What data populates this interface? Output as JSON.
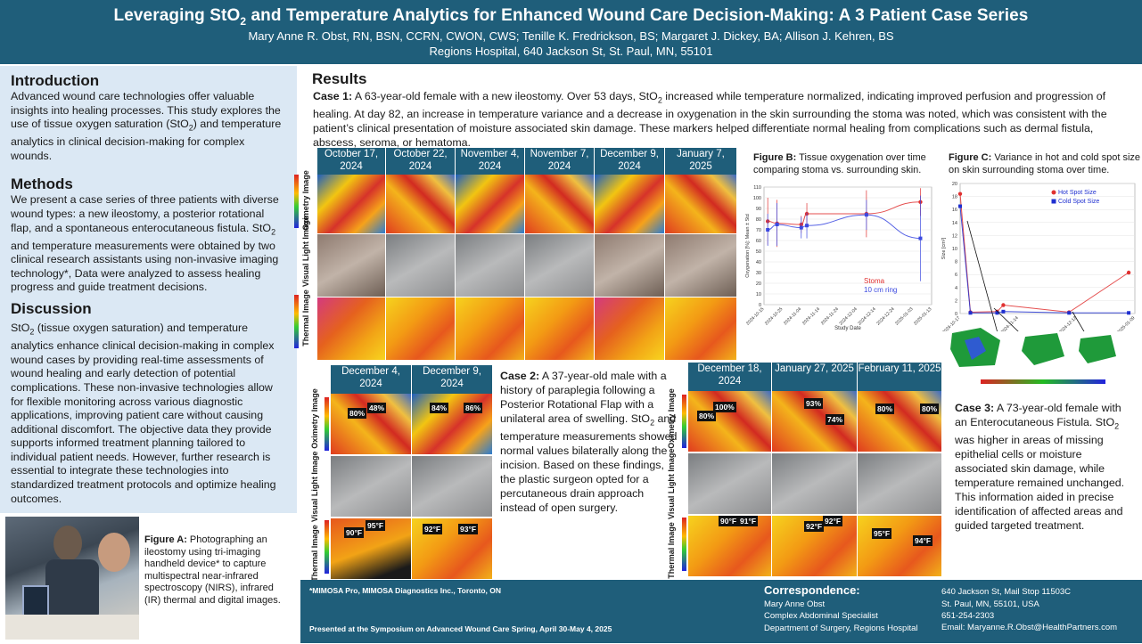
{
  "header": {
    "title_pre": "Leveraging StO",
    "title_sub": "2",
    "title_post": " and Temperature Analytics for Enhanced Wound Care Decision-Making: A 3 Patient Case Series",
    "authors": "Mary Anne R. Obst, RN, BSN, CCRN, CWON, CWS; Tenille K. Fredrickson, BS; Margaret J. Dickey, BA; Allison J. Kehren, BS",
    "affiliation": "Regions Hospital, 640 Jackson St, St. Paul, MN, 55101"
  },
  "intro": {
    "heading": "Introduction",
    "text1": "Advanced wound care technologies offer valuable insights into healing processes. This study explores the use of tissue oxygen saturation (StO",
    "text_sub": "2",
    "text2": ") and temperature analytics in clinical decision-making for complex wounds."
  },
  "methods": {
    "heading": "Methods",
    "text1": "We present a case series of three patients with diverse wound types: a new ileostomy, a posterior rotational flap, and a spontaneous enterocutaneous fistula. StO",
    "text_sub": "2",
    "text2": " and temperature measurements were obtained by two clinical research assistants using non-invasive imaging technology*, Data were analyzed to assess healing progress and guide treatment decisions."
  },
  "discussion": {
    "heading": "Discussion",
    "text1": "StO",
    "text_sub": "2",
    "text2": " (tissue oxygen saturation) and temperature analytics enhance clinical decision-making in complex wound cases by providing real-time assessments of wound healing and early detection of potential complications. These non-invasive technologies allow for flexible monitoring across various diagnostic applications, improving patient care without causing additional discomfort. The objective data they provide supports informed treatment planning tailored to individual patient needs. However, further research is essential to integrate these technologies into standardized treatment protocols and optimize healing outcomes."
  },
  "figure_a": {
    "label": "Figure A:",
    "text": " Photographing an ileostomy using tri-imaging handheld device* to capture multispectral near-infrared spectroscopy (NIRS), infrared (IR) thermal and digital images."
  },
  "results": {
    "heading": "Results",
    "case1_label": "Case 1:",
    "case1_text1": " A 63-year-old female with a new ileostomy. Over 53 days, StO",
    "case1_sub": "2",
    "case1_text2": " increased while temperature normalized, indicating improved perfusion and progression of healing. At day 82, an increase in temperature variance and a decrease in oxygenation in the skin surrounding the stoma was noted, which was consistent with the patient’s clinical presentation of moisture associated skin damage. These markers helped differentiate normal healing from complications such as dermal fistula, abscess, seroma, or hematoma."
  },
  "case1_grid": {
    "dates": [
      "October 17, 2024",
      "October 22, 2024",
      "November 4, 2024",
      "November 7, 2024",
      "December 9, 2024",
      "January 7, 2025"
    ],
    "row_labels": [
      "Oximetry Image",
      "Visual Light Image",
      "Thermal Image"
    ]
  },
  "figure_b": {
    "label": "Figure B:",
    "text": " Tissue oxygenation over time comparing stoma vs. surrounding skin."
  },
  "figure_c": {
    "label": "Figure C:",
    "text": " Variance in hot and cold spot size on skin surrounding stoma over time."
  },
  "chart_data": [
    {
      "type": "line",
      "title": "Tissue oxygenation over time comparing stoma vs. surrounding skin",
      "xlabel": "Study Date",
      "ylabel": "Oxygenation [%]: Mean ± Std",
      "ylim": [
        0,
        110
      ],
      "yticks": [
        0,
        10,
        20,
        30,
        40,
        50,
        60,
        70,
        80,
        90,
        100,
        110
      ],
      "xticks": [
        "2024-10-15",
        "2024-10-25",
        "2024-11-04",
        "2024-11-14",
        "2024-11-24",
        "2024-12-04",
        "2024-12-14",
        "2024-12-24",
        "2025-01-03",
        "2025-01-13"
      ],
      "legend": [
        "Stoma",
        "10 cm ring"
      ],
      "series": [
        {
          "name": "Stoma",
          "color": "#e03030",
          "days": [
            2,
            7,
            20,
            23,
            55,
            84
          ],
          "values": [
            78,
            76,
            75,
            85,
            85,
            96
          ],
          "err": [
            22,
            22,
            8,
            10,
            22,
            13
          ]
        },
        {
          "name": "10 cm ring",
          "color": "#3b49e0",
          "days": [
            2,
            7,
            20,
            23,
            55,
            84
          ],
          "values": [
            70,
            75,
            72,
            74,
            84,
            62
          ],
          "err": [
            15,
            20,
            10,
            12,
            14,
            40
          ]
        }
      ]
    },
    {
      "type": "line",
      "title": "Variance in hot and cold spot size on skin surrounding stoma over time",
      "xlabel": "Study Date",
      "ylabel": "Size [cm²]",
      "ylim": [
        0,
        20
      ],
      "yticks": [
        0,
        2,
        4,
        6,
        8,
        10,
        12,
        14,
        16,
        18,
        20
      ],
      "xticks": [
        "2024-10-17",
        "2024-11-14",
        "2024-12-12",
        "2025-01-09"
      ],
      "legend": [
        "Hot Spot Size",
        "Cold Spot Size"
      ],
      "series": [
        {
          "name": "Hot Spot Size",
          "color": "#e03030",
          "days": [
            0,
            5,
            18,
            21,
            53,
            82
          ],
          "values": [
            18.4,
            0.2,
            0.3,
            1.3,
            0.2,
            6.3
          ]
        },
        {
          "name": "Cold Spot Size",
          "color": "#1f2fd0",
          "days": [
            0,
            5,
            18,
            21,
            53,
            82
          ],
          "values": [
            16.5,
            0.1,
            0.1,
            0.3,
            0.1,
            0.1
          ]
        }
      ]
    }
  ],
  "case2": {
    "dates": [
      "December 4, 2024",
      "December 9, 2024"
    ],
    "row_labels": [
      "Oximetry Image",
      "Visual Light Image",
      "Thermal Image"
    ],
    "oxi_values": [
      "80%",
      "48%",
      "84%",
      "86%"
    ],
    "thermal_values": [
      "90°F",
      "95°F",
      "92°F",
      "93°F"
    ],
    "label": "Case 2:",
    "text1": " A 37-year-old male with a history of paraplegia following a Posterior Rotational Flap with a unilateral area of swelling. StO",
    "text_sub": "2",
    "text2": " and temperature measurements showed normal values bilaterally along the incision. Based on these findings, the plastic surgeon opted for a percutaneous drain approach instead of open surgery."
  },
  "case3": {
    "dates": [
      "December 18, 2024",
      "January 27, 2025",
      "February 11, 2025"
    ],
    "row_labels": [
      "Oximetry Image",
      "Visual Light Image",
      "Thermal Image"
    ],
    "oxi_values": [
      "100%",
      "80%",
      "93%",
      "74%",
      "80%",
      "80%"
    ],
    "thermal_values": [
      "90°F",
      "91°F",
      "92°F",
      "92°F",
      "95°F",
      "94°F"
    ],
    "label": "Case 3:",
    "text1": " A 73-year-old female with an Enterocutaneous Fistula. StO",
    "text_sub": "2",
    "text2": " was higher in areas of missing epithelial cells or moisture associated skin damage, while temperature remained unchanged. This information aided in precise identification of affected areas and guided targeted treatment."
  },
  "footer": {
    "device_note": "*MIMOSA Pro, MIMOSA Diagnostics Inc., Toronto, ON",
    "presented": "Presented at the Symposium on Advanced Wound Care Spring, April 30-May 4, 2025",
    "correspondence_heading": "Correspondence:",
    "name": "Mary Anne Obst",
    "role": "Complex Abdominal Specialist",
    "dept": "Department of Surgery, Regions Hospital",
    "address1": "640 Jackson St, Mail Stop 11503C",
    "address2": "St. Paul, MN, 55101, USA",
    "phone": "651-254-2303",
    "email": "Email: Maryanne.R.Obst@HealthPartners.com"
  }
}
